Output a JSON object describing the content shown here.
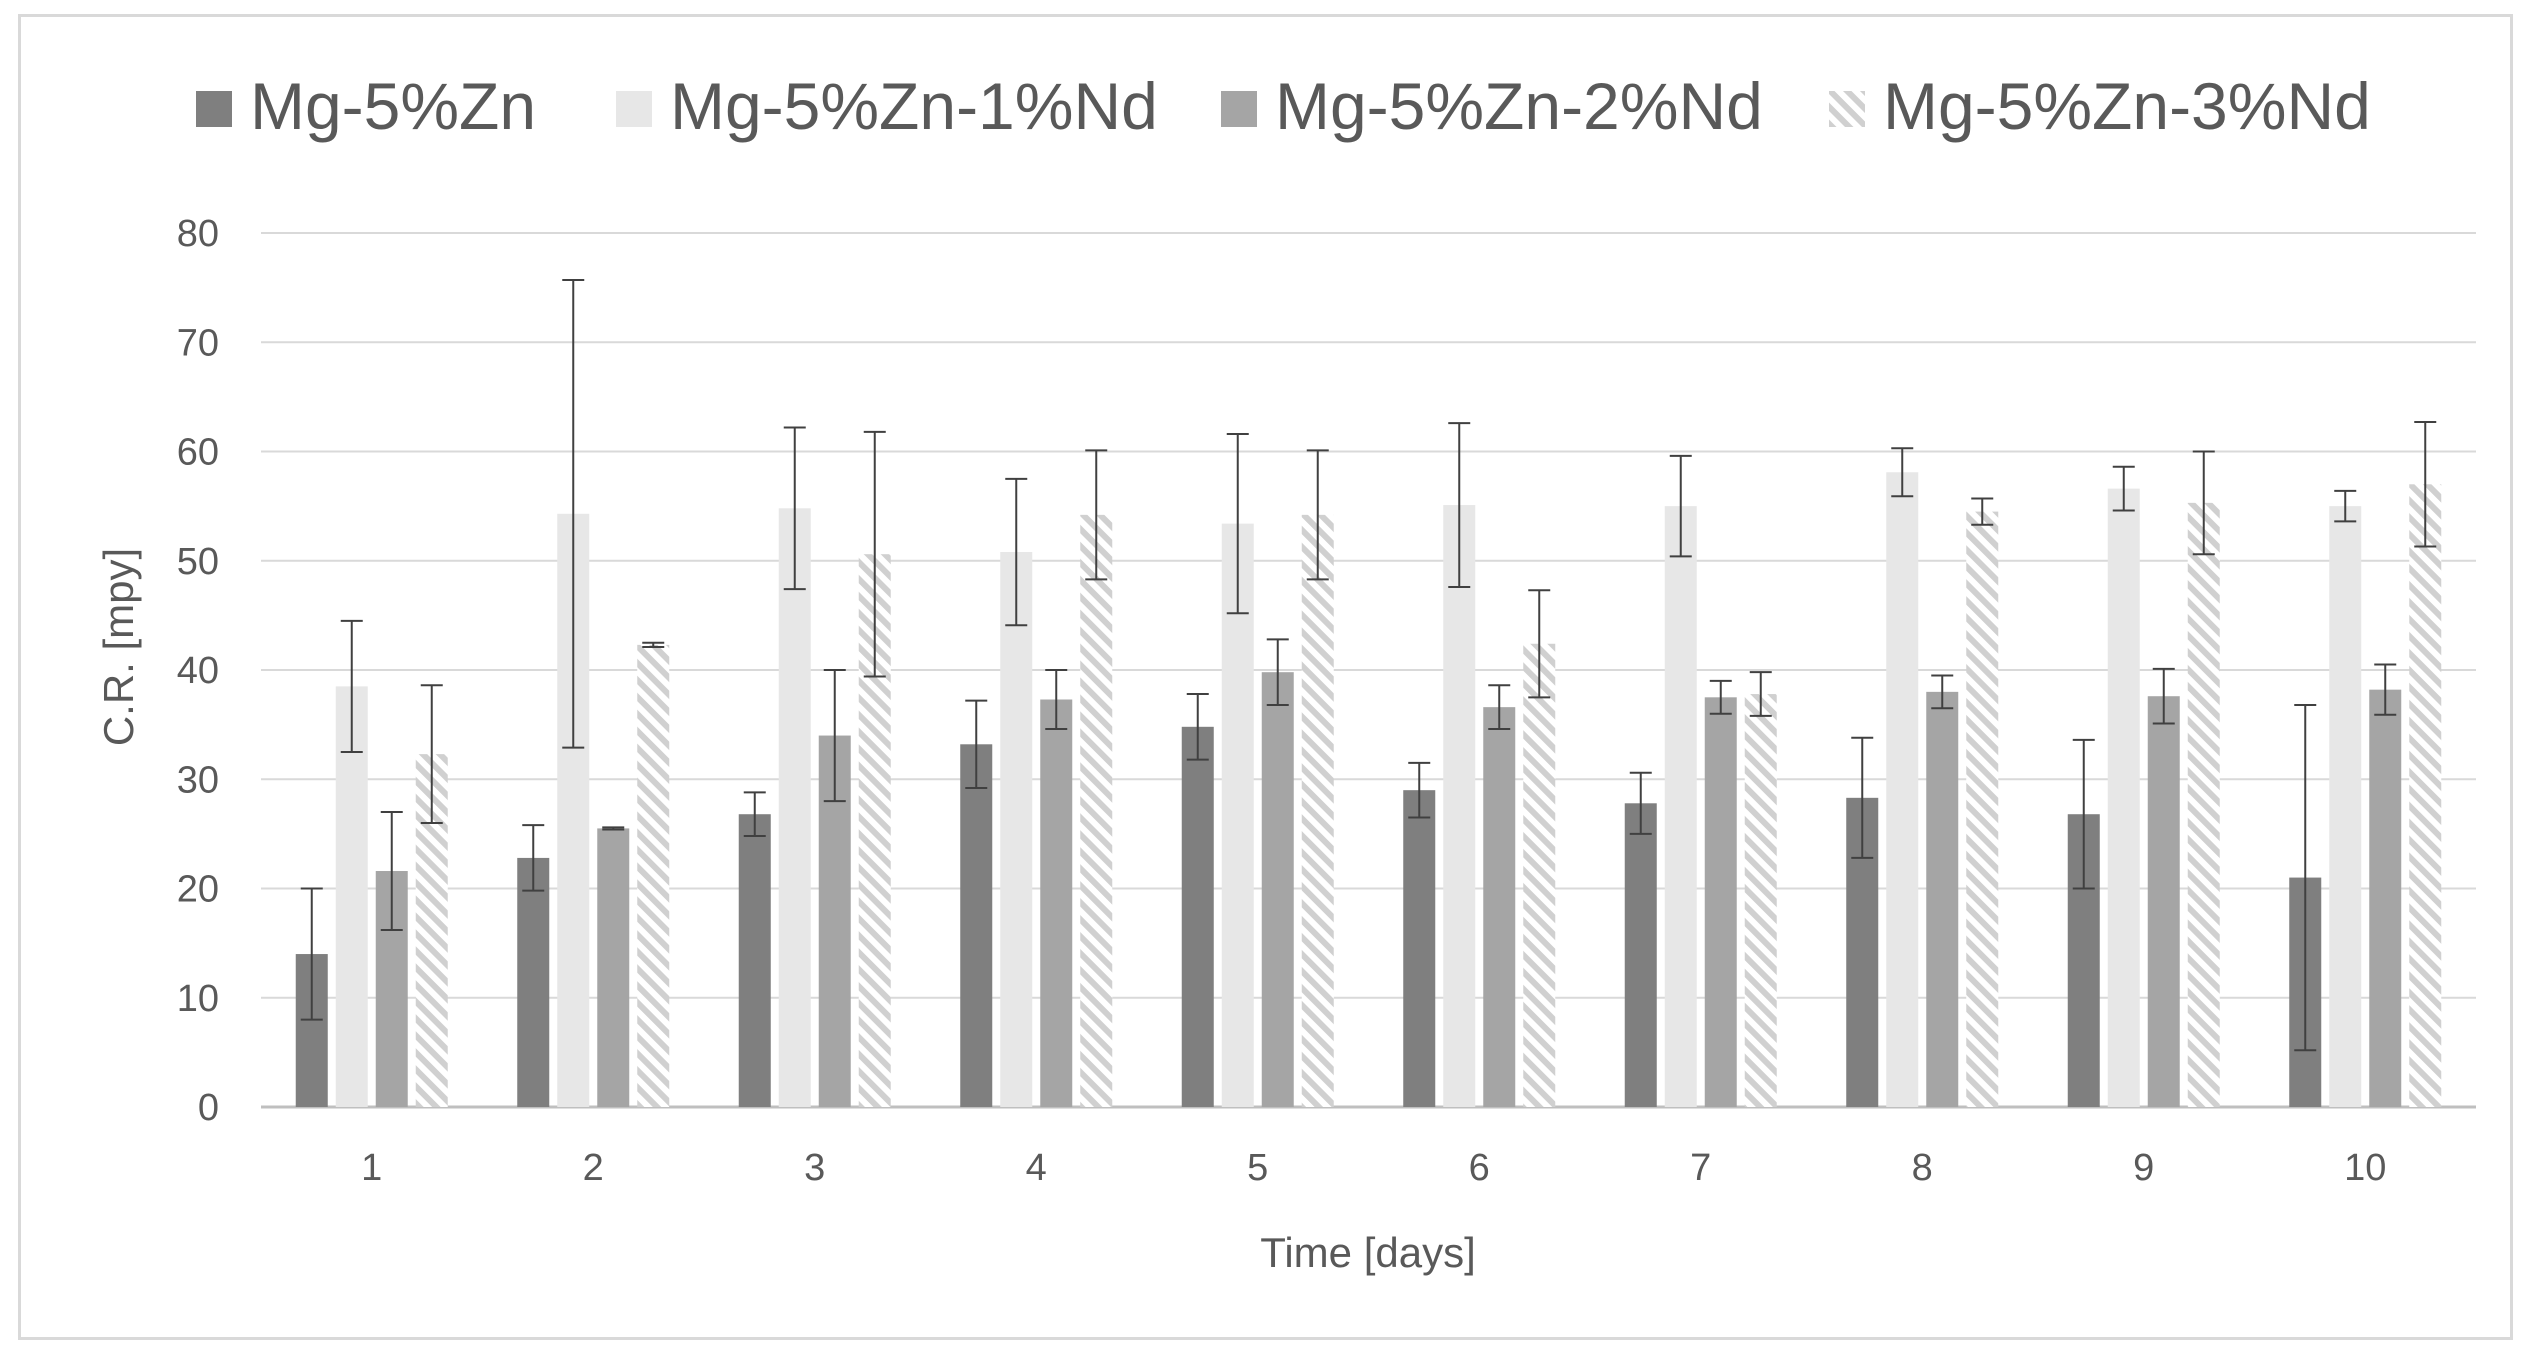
{
  "chart_data": {
    "type": "bar",
    "title": "",
    "xlabel": "Time [days]",
    "ylabel": "C.R. [mpy]",
    "ylim": [
      0,
      80
    ],
    "yticks": [
      0,
      10,
      20,
      30,
      40,
      50,
      60,
      70,
      80
    ],
    "grid": true,
    "legend_position": "top",
    "categories": [
      "1",
      "2",
      "3",
      "4",
      "5",
      "6",
      "7",
      "8",
      "9",
      "10"
    ],
    "series": [
      {
        "name": "Mg-5%Zn",
        "color": "#7f7f7f",
        "pattern": "solid",
        "values": [
          14,
          22.8,
          26.8,
          33.2,
          34.8,
          29,
          27.8,
          28.3,
          26.8,
          21
        ],
        "errors": [
          6,
          3,
          2,
          4,
          3,
          2.5,
          2.8,
          5.5,
          6.8,
          15.8
        ]
      },
      {
        "name": "Mg-5%Zn-1%Nd",
        "color": "#e7e7e7",
        "pattern": "solid",
        "values": [
          38.5,
          54.3,
          54.8,
          50.8,
          53.4,
          55.1,
          55,
          58.1,
          56.6,
          55
        ],
        "errors": [
          6,
          21.4,
          7.4,
          6.7,
          8.2,
          7.5,
          4.6,
          2.2,
          2,
          1.4
        ]
      },
      {
        "name": "Mg-5%Zn-2%Nd",
        "color": "#a5a5a5",
        "pattern": "solid",
        "values": [
          21.6,
          25.5,
          34,
          37.3,
          39.8,
          36.6,
          37.5,
          38,
          37.6,
          38.2
        ],
        "errors": [
          5.4,
          0.1,
          6,
          2.7,
          3,
          2,
          1.5,
          1.5,
          2.5,
          2.3
        ]
      },
      {
        "name": "Mg-5%Zn-3%Nd",
        "color": "#d0d0d0",
        "pattern": "hatched",
        "values": [
          32.3,
          42.3,
          50.6,
          54.2,
          54.2,
          42.4,
          37.8,
          54.5,
          55.3,
          57
        ],
        "errors": [
          6.3,
          0.2,
          11.2,
          5.9,
          5.9,
          4.9,
          2,
          1.2,
          4.7,
          5.7
        ]
      }
    ]
  }
}
